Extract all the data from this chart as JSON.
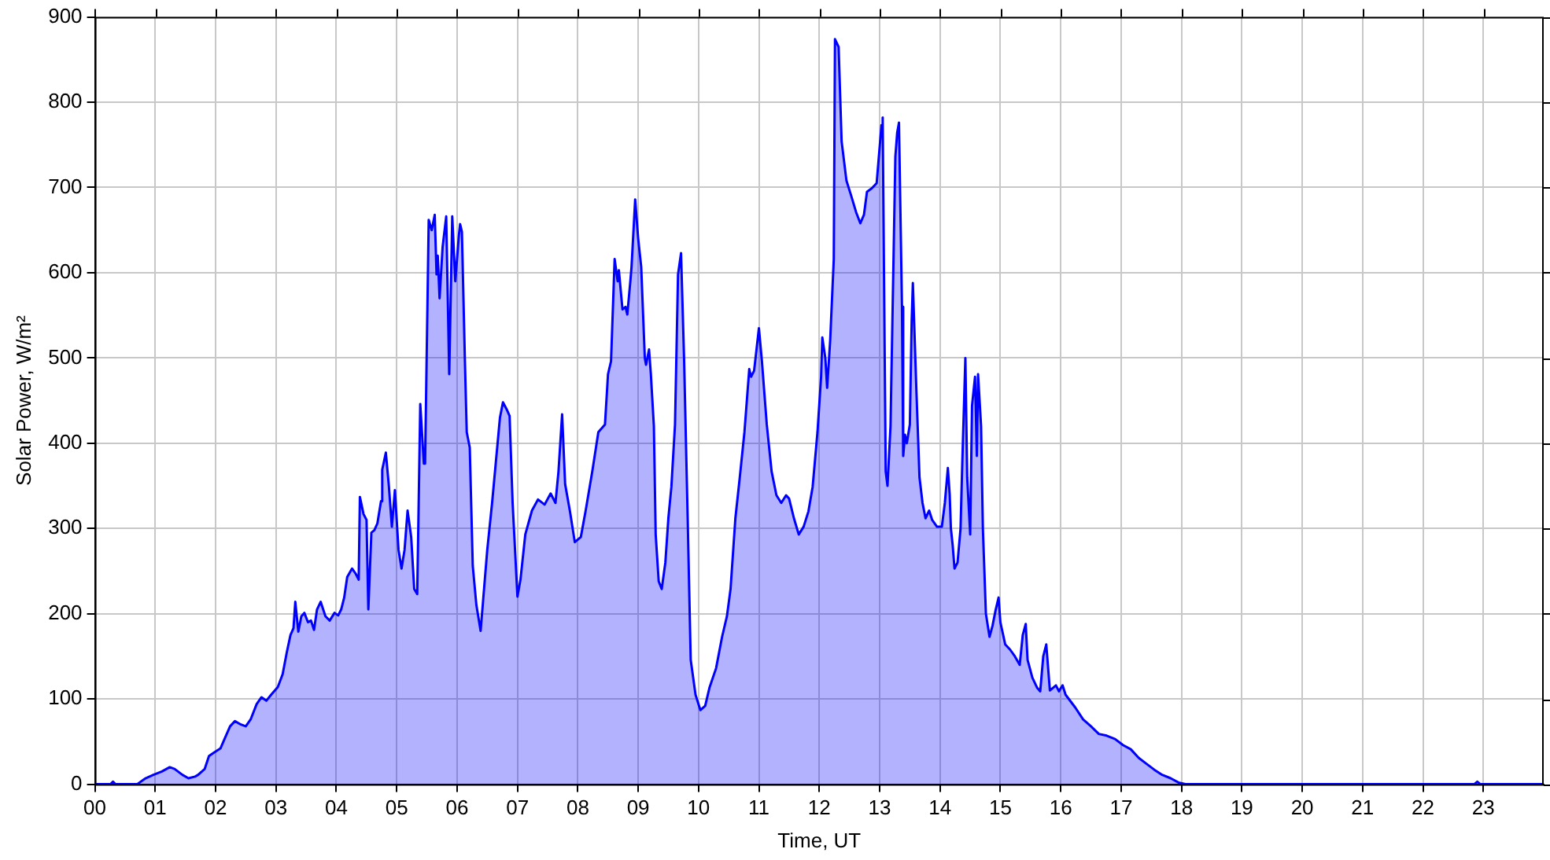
{
  "chart_data": {
    "type": "area",
    "xlabel": "Time, UT",
    "ylabel": "Solar Power, W/m²",
    "xlim": [
      0,
      24
    ],
    "ylim": [
      0,
      900
    ],
    "xticks": [
      {
        "value": 0,
        "label": "00"
      },
      {
        "value": 1,
        "label": "01"
      },
      {
        "value": 2,
        "label": "02"
      },
      {
        "value": 3,
        "label": "03"
      },
      {
        "value": 4,
        "label": "04"
      },
      {
        "value": 5,
        "label": "05"
      },
      {
        "value": 6,
        "label": "06"
      },
      {
        "value": 7,
        "label": "07"
      },
      {
        "value": 8,
        "label": "08"
      },
      {
        "value": 9,
        "label": "09"
      },
      {
        "value": 10,
        "label": "10"
      },
      {
        "value": 11,
        "label": "11"
      },
      {
        "value": 12,
        "label": "12"
      },
      {
        "value": 13,
        "label": "13"
      },
      {
        "value": 14,
        "label": "14"
      },
      {
        "value": 15,
        "label": "15"
      },
      {
        "value": 16,
        "label": "16"
      },
      {
        "value": 17,
        "label": "17"
      },
      {
        "value": 18,
        "label": "18"
      },
      {
        "value": 19,
        "label": "19"
      },
      {
        "value": 20,
        "label": "20"
      },
      {
        "value": 21,
        "label": "21"
      },
      {
        "value": 22,
        "label": "22"
      },
      {
        "value": 23,
        "label": "23"
      }
    ],
    "yticks": [
      0,
      100,
      200,
      300,
      400,
      500,
      600,
      700,
      800,
      900
    ],
    "grid": true,
    "legend": false,
    "marker": "none",
    "line_style": "solid",
    "series": [
      {
        "color": "#0000ff",
        "x": [
          0,
          0.26,
          0.3,
          0.34,
          0.7,
          0.84,
          0.97,
          1.11,
          1.24,
          1.32,
          1.45,
          1.55,
          1.66,
          1.71,
          1.82,
          1.89,
          1.97,
          2.08,
          2.16,
          2.24,
          2.32,
          2.42,
          2.5,
          2.58,
          2.68,
          2.76,
          2.84,
          2.92,
          3.03,
          3.11,
          3.18,
          3.24,
          3.29,
          3.32,
          3.37,
          3.42,
          3.47,
          3.53,
          3.58,
          3.63,
          3.68,
          3.74,
          3.82,
          3.89,
          3.97,
          4.03,
          4.08,
          4.13,
          4.18,
          4.26,
          4.32,
          4.37,
          4.39,
          4.45,
          4.5,
          4.53,
          4.58,
          4.63,
          4.68,
          4.74,
          4.76,
          4.82,
          4.87,
          4.92,
          4.97,
          5.03,
          5.08,
          5.13,
          5.18,
          5.24,
          5.29,
          5.34,
          5.39,
          5.45,
          5.47,
          5.53,
          5.58,
          5.63,
          5.66,
          5.68,
          5.71,
          5.76,
          5.82,
          5.87,
          5.92,
          5.97,
          6.03,
          6.05,
          6.08,
          6.13,
          6.16,
          6.21,
          6.26,
          6.32,
          6.39,
          6.5,
          6.58,
          6.71,
          6.76,
          6.82,
          6.87,
          6.92,
          7.0,
          7.05,
          7.13,
          7.24,
          7.34,
          7.45,
          7.55,
          7.63,
          7.68,
          7.74,
          7.79,
          7.87,
          7.95,
          8.05,
          8.13,
          8.24,
          8.34,
          8.45,
          8.5,
          8.55,
          8.61,
          8.66,
          8.68,
          8.74,
          8.79,
          8.82,
          8.87,
          8.89,
          8.95,
          9.0,
          9.05,
          9.11,
          9.13,
          9.18,
          9.21,
          9.26,
          9.29,
          9.34,
          9.39,
          9.45,
          9.5,
          9.55,
          9.61,
          9.66,
          9.71,
          9.76,
          9.82,
          9.87,
          9.95,
          10.03,
          10.11,
          10.18,
          10.29,
          10.39,
          10.47,
          10.53,
          10.61,
          10.68,
          10.76,
          10.84,
          10.87,
          10.92,
          11.0,
          11.05,
          11.13,
          11.21,
          11.29,
          11.37,
          11.45,
          11.5,
          11.58,
          11.66,
          11.74,
          11.82,
          11.89,
          11.97,
          12.03,
          12.05,
          12.1,
          12.13,
          12.18,
          12.24,
          12.26,
          12.32,
          12.37,
          12.45,
          12.53,
          12.61,
          12.68,
          12.74,
          12.79,
          12.87,
          12.95,
          13.03,
          13.05,
          13.1,
          13.13,
          13.18,
          13.26,
          13.29,
          13.32,
          13.37,
          13.39,
          13.42,
          13.45,
          13.5,
          13.53,
          13.55,
          13.61,
          13.66,
          13.71,
          13.76,
          13.82,
          13.87,
          13.95,
          14.03,
          14.08,
          14.13,
          14.16,
          14.18,
          14.21,
          14.24,
          14.29,
          14.34,
          14.37,
          14.42,
          14.45,
          14.5,
          14.53,
          14.58,
          14.61,
          14.63,
          14.68,
          14.71,
          14.76,
          14.82,
          14.87,
          14.92,
          14.97,
          15.0,
          15.08,
          15.16,
          15.24,
          15.32,
          15.37,
          15.42,
          15.45,
          15.53,
          15.61,
          15.66,
          15.71,
          15.76,
          15.82,
          15.92,
          15.97,
          16.03,
          16.08,
          16.24,
          16.37,
          16.5,
          16.63,
          16.76,
          16.9,
          17.03,
          17.16,
          17.29,
          17.42,
          17.55,
          17.68,
          17.82,
          17.95,
          18.08,
          18.34,
          22.85,
          22.9,
          22.95,
          24
        ],
        "values": [
          0,
          0,
          3,
          0,
          0,
          7,
          11,
          15,
          20,
          18,
          11,
          7,
          9,
          11,
          18,
          33,
          37,
          42,
          55,
          68,
          74,
          70,
          68,
          76,
          94,
          102,
          98,
          105,
          114,
          129,
          155,
          175,
          183,
          214,
          179,
          197,
          201,
          190,
          192,
          181,
          205,
          214,
          197,
          192,
          201,
          198,
          205,
          219,
          243,
          253,
          247,
          240,
          337,
          317,
          310,
          205,
          295,
          298,
          306,
          332,
          369,
          389,
          350,
          302,
          345,
          275,
          253,
          275,
          321,
          290,
          229,
          223,
          446,
          376,
          376,
          662,
          650,
          668,
          598,
          620,
          570,
          630,
          666,
          481,
          666,
          590,
          644,
          657,
          648,
          496,
          413,
          395,
          256,
          210,
          180,
          275,
          330,
          430,
          448,
          440,
          432,
          330,
          220,
          240,
          293,
          321,
          334,
          328,
          341,
          330,
          367,
          434,
          352,
          320,
          284,
          290,
          321,
          367,
          413,
          422,
          481,
          496,
          616,
          590,
          603,
          557,
          560,
          551,
          590,
          607,
          686,
          640,
          607,
          500,
          492,
          510,
          481,
          420,
          293,
          238,
          229,
          260,
          312,
          349,
          422,
          598,
          623,
          500,
          312,
          146,
          105,
          87,
          92,
          113,
          136,
          173,
          197,
          229,
          312,
          358,
          413,
          487,
          478,
          485,
          535,
          496,
          422,
          367,
          339,
          330,
          339,
          335,
          312,
          293,
          302,
          320,
          349,
          413,
          478,
          524,
          500,
          465,
          520,
          616,
          874,
          865,
          754,
          708,
          690,
          671,
          658,
          668,
          695,
          699,
          705,
          773,
          782,
          367,
          350,
          420,
          736,
          764,
          776,
          560,
          385,
          410,
          400,
          422,
          542,
          588,
          459,
          360,
          330,
          312,
          321,
          310,
          302,
          302,
          330,
          371,
          340,
          300,
          280,
          253,
          260,
          300,
          380,
          500,
          360,
          293,
          444,
          478,
          385,
          481,
          420,
          300,
          200,
          173,
          186,
          204,
          219,
          190,
          164,
          158,
          150,
          140,
          175,
          188,
          146,
          125,
          113,
          109,
          150,
          164,
          110,
          116,
          109,
          116,
          105,
          90,
          76,
          68,
          59,
          57,
          53,
          46,
          41,
          31,
          24,
          17,
          11,
          7,
          2,
          0,
          0,
          0,
          3,
          0,
          0
        ]
      }
    ]
  }
}
